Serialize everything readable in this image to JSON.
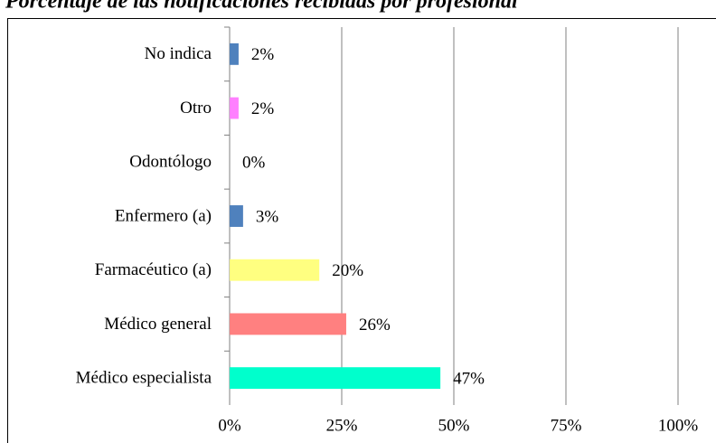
{
  "chart_data": {
    "type": "bar",
    "orientation": "horizontal",
    "title": "Porcentaje de las notificaciones recibidas por profesional",
    "categories": [
      "No indica",
      "Otro",
      "Odontólogo",
      "Enfermero (a)",
      "Farmacéutico (a)",
      "Médico general",
      "Médico especialista"
    ],
    "values": [
      2,
      2,
      0,
      3,
      20,
      26,
      47
    ],
    "value_labels": [
      "2%",
      "2%",
      "0%",
      "3%",
      "20%",
      "26%",
      "47%"
    ],
    "colors": [
      "#4f81bd",
      "#ff80ff",
      "#4f81bd",
      "#4f81bd",
      "#ffff80",
      "#ff8080",
      "#00ffcc"
    ],
    "xlim": [
      0,
      100
    ],
    "xticks": [
      {
        "value": 0,
        "label": "0%"
      },
      {
        "value": 25,
        "label": "25%"
      },
      {
        "value": 50,
        "label": "50%"
      },
      {
        "value": 75,
        "label": "75%"
      },
      {
        "value": 100,
        "label": "100%"
      }
    ],
    "grid": true
  }
}
